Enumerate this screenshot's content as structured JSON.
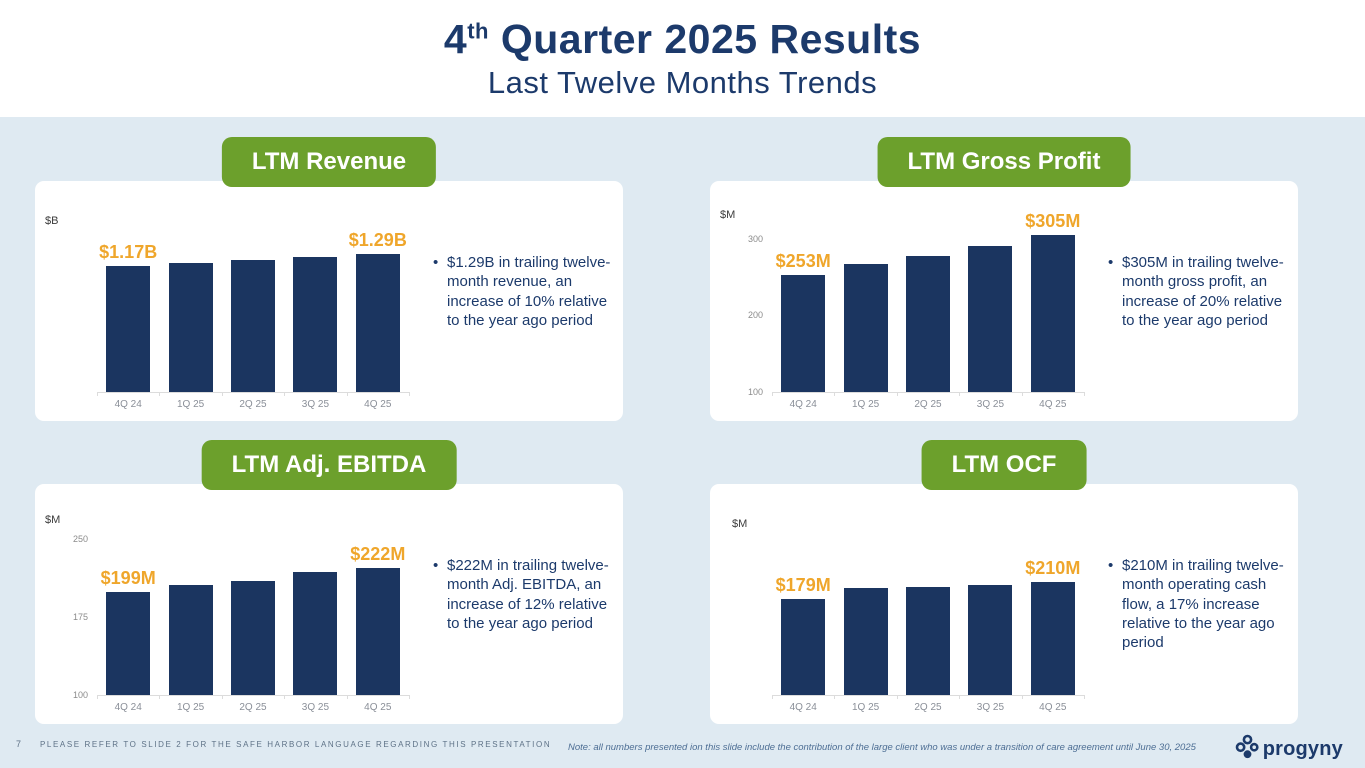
{
  "header": {
    "title_num": "4",
    "title_sup": "th",
    "title_rest": " Quarter 2025 Results",
    "subtitle": "Last Twelve Months Trends"
  },
  "colors": {
    "navy": "#1b3560",
    "gold": "#efa62b",
    "green": "#6ca02c",
    "background_blue": "#dfeaf2",
    "card_white": "#ffffff"
  },
  "chart_data": [
    {
      "id": "ltm-revenue",
      "type": "bar",
      "title": "LTM Revenue",
      "unit_label": "$B",
      "categories": [
        "4Q 24",
        "1Q 25",
        "2Q 25",
        "3Q 25",
        "4Q 25"
      ],
      "values": [
        1.17,
        1.2,
        1.23,
        1.26,
        1.29
      ],
      "ylim": [
        0,
        1.5
      ],
      "yticks": [],
      "callouts": {
        "first": "$1.17B",
        "last": "$1.29B"
      },
      "bullet": "$1.29B in trailing twelve-month revenue, an increase of 10% relative to the year ago period"
    },
    {
      "id": "ltm-gross-profit",
      "type": "bar",
      "title": "LTM Gross Profit",
      "unit_label": "$M",
      "categories": [
        "4Q 24",
        "1Q 25",
        "2Q 25",
        "3Q 25",
        "4Q 25"
      ],
      "values": [
        253,
        267,
        277,
        290,
        305
      ],
      "ylim": [
        100,
        310
      ],
      "yticks": [
        100,
        200,
        300
      ],
      "callouts": {
        "first": "$253M",
        "last": "$305M"
      },
      "bullet": "$305M in trailing twelve-month gross profit, an increase of 20% relative to the year ago period"
    },
    {
      "id": "ltm-adj-ebitda",
      "type": "bar",
      "title": "LTM Adj. EBITDA",
      "unit_label": "$M",
      "categories": [
        "4Q 24",
        "1Q 25",
        "2Q 25",
        "3Q 25",
        "4Q 25"
      ],
      "values": [
        199,
        206,
        210,
        218,
        222
      ],
      "ylim": [
        100,
        255
      ],
      "yticks": [
        100,
        175,
        250
      ],
      "callouts": {
        "first": "$199M",
        "last": "$222M"
      },
      "bullet": "$222M in trailing twelve-month Adj. EBITDA, an increase of 12% relative to the year ago period"
    },
    {
      "id": "ltm-ocf",
      "type": "bar",
      "title": "LTM OCF",
      "unit_label": "$M",
      "categories": [
        "4Q 24",
        "1Q 25",
        "2Q 25",
        "3Q 25",
        "4Q 25"
      ],
      "values": [
        179,
        200,
        201,
        205,
        210
      ],
      "ylim": [
        0,
        300
      ],
      "yticks": [],
      "callouts": {
        "first": "$179M",
        "last": "$210M"
      },
      "bullet": "$210M in trailing twelve-month operating cash flow, a 17% increase relative to the year ago period"
    }
  ],
  "footer": {
    "page_number": "7",
    "safe_harbor": "PLEASE REFER TO SLIDE 2 FOR THE SAFE HARBOR LANGUAGE REGARDING THIS PRESENTATION",
    "note": "Note: all numbers presented ion this slide include the contribution of the large client who was under a transition of care agreement until June 30, 2025",
    "logo_text": "progyny"
  }
}
